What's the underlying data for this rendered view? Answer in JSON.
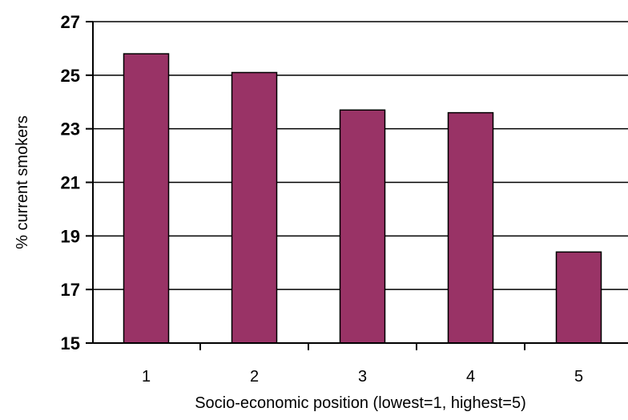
{
  "chart_data": {
    "type": "bar",
    "title": "",
    "xlabel": "Socio-economic position (lowest=1, highest=5)",
    "ylabel": "% current smokers",
    "categories": [
      "1",
      "2",
      "3",
      "4",
      "5"
    ],
    "values": [
      25.8,
      25.1,
      23.7,
      23.6,
      18.4
    ],
    "ylim": [
      15,
      27
    ],
    "yticks": [
      "15",
      "17",
      "19",
      "21",
      "23",
      "25",
      "27"
    ],
    "grid": true,
    "legend": "none",
    "bar_color": "#993366"
  }
}
